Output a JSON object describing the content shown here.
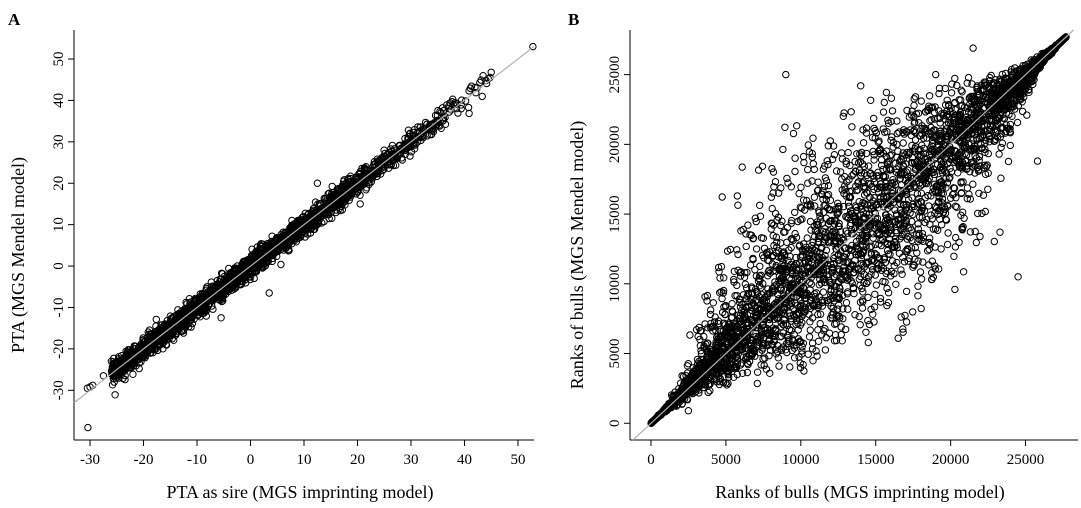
{
  "figure": {
    "panels": [
      "A",
      "B"
    ]
  },
  "chart_data": [
    {
      "panel": "A",
      "type": "scatter",
      "title": "",
      "xlabel": "PTA as sire (MGS imprinting model)",
      "ylabel": "PTA (MGS Mendel model)",
      "xlim": [
        -33,
        53
      ],
      "ylim": [
        -42,
        57
      ],
      "xticks": [
        -30,
        -20,
        -10,
        0,
        10,
        20,
        30,
        40,
        50
      ],
      "yticks": [
        -30,
        -20,
        -10,
        0,
        10,
        20,
        30,
        40,
        50
      ],
      "grid": false,
      "legend": "none",
      "reference_line": {
        "slope": 1,
        "intercept": 0,
        "color": "#b0b0b0"
      },
      "marker": "open-circle",
      "outliers": [
        [
          -30.5,
          -29.5
        ],
        [
          -30.0,
          -29.2
        ],
        [
          -29.5,
          -28.8
        ],
        [
          -30.4,
          -39.0
        ],
        [
          52.8,
          53.0
        ],
        [
          -27.5,
          -26.5
        ],
        [
          -26.0,
          -23.0
        ],
        [
          3.5,
          -6.5
        ],
        [
          -3.5,
          -1.5
        ],
        [
          12.5,
          20.0
        ],
        [
          20.5,
          15.0
        ],
        [
          -5.5,
          -12.5
        ]
      ],
      "cloud": {
        "x_range": [
          -26,
          46
        ],
        "y_spread": 2.5,
        "n": 2200
      }
    },
    {
      "panel": "B",
      "type": "scatter",
      "title": "",
      "xlabel": "Ranks of bulls (MGS imprinting model)",
      "ylabel": "Ranks of bulls (MGS Mendel model)",
      "xlim": [
        -1400,
        28500
      ],
      "ylim": [
        -1200,
        28200
      ],
      "xticks": [
        0,
        5000,
        10000,
        15000,
        20000,
        25000
      ],
      "yticks": [
        0,
        5000,
        10000,
        15000,
        20000,
        25000
      ],
      "grid": false,
      "legend": "none",
      "reference_line": {
        "slope": 1,
        "intercept": 0,
        "color": "#b0b0b0"
      },
      "marker": "open-circle",
      "outliers": [
        [
          9000,
          25000
        ],
        [
          16500,
          6100
        ],
        [
          21500,
          26900
        ],
        [
          24500,
          10500
        ],
        [
          6000,
          13800
        ],
        [
          19000,
          25000
        ],
        [
          25800,
          18800
        ],
        [
          12800,
          7500
        ],
        [
          2500,
          900
        ],
        [
          14000,
          24200
        ]
      ],
      "cloud": {
        "x_range": [
          0,
          27700
        ],
        "max_spread": 6500,
        "n": 3800
      }
    }
  ]
}
